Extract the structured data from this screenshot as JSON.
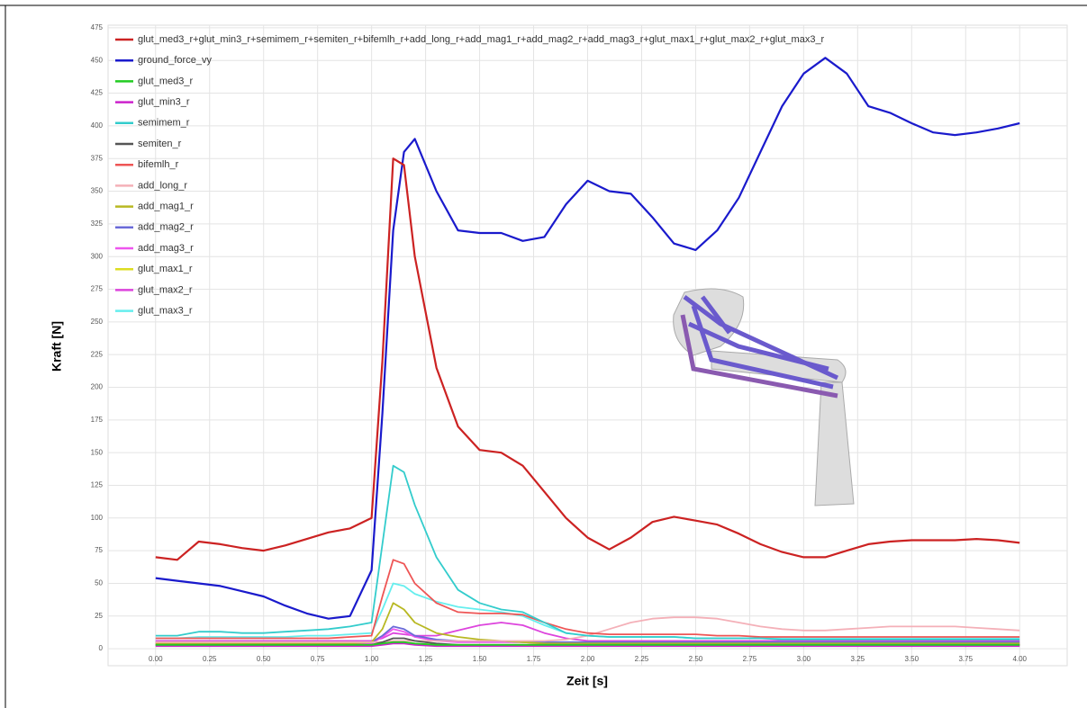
{
  "chart_data": {
    "type": "line",
    "xlabel": "Zeit [s]",
    "ylabel": "Kraft [N]",
    "x": [
      0,
      0.1,
      0.2,
      0.3,
      0.4,
      0.5,
      0.6,
      0.7,
      0.8,
      0.9,
      1.0,
      1.05,
      1.1,
      1.15,
      1.2,
      1.3,
      1.4,
      1.5,
      1.6,
      1.7,
      1.8,
      1.9,
      2.0,
      2.1,
      2.2,
      2.3,
      2.4,
      2.5,
      2.6,
      2.7,
      2.8,
      2.9,
      3.0,
      3.1,
      3.2,
      3.3,
      3.4,
      3.5,
      3.6,
      3.7,
      3.8,
      3.9,
      4.0
    ],
    "series": [
      {
        "name": "glut_med3_r+glut_min3_r+semimem_r+semiten_r+bifemlh_r+add_long_r+add_mag1_r+add_mag2_r+add_mag3_r+glut_max1_r+glut_max2_r+glut_max3_r",
        "color": "#cc2222",
        "values": [
          70,
          68,
          82,
          80,
          77,
          75,
          79,
          84,
          89,
          92,
          100,
          220,
          375,
          370,
          300,
          215,
          170,
          152,
          150,
          140,
          120,
          100,
          85,
          76,
          85,
          97,
          101,
          98,
          95,
          88,
          80,
          74,
          70,
          70,
          75,
          80,
          82,
          83,
          83,
          83,
          84,
          83,
          81
        ]
      },
      {
        "name": "ground_force_vy",
        "color": "#1a1acc",
        "values": [
          54,
          52,
          50,
          48,
          44,
          40,
          33,
          27,
          23,
          25,
          60,
          180,
          320,
          380,
          390,
          350,
          320,
          318,
          318,
          312,
          315,
          340,
          358,
          350,
          348,
          330,
          310,
          305,
          320,
          345,
          380,
          415,
          440,
          452,
          440,
          415,
          410,
          402,
          395,
          393,
          395,
          398,
          402
        ]
      },
      {
        "name": "glut_med3_r",
        "color": "#22cc22",
        "values": [
          3,
          3,
          3,
          3,
          3,
          3,
          3,
          3,
          3,
          3,
          3,
          4,
          5,
          5,
          4,
          3,
          3,
          3,
          3,
          3,
          3,
          3,
          3,
          3,
          3,
          3,
          3,
          3,
          3,
          3,
          3,
          3,
          3,
          3,
          3,
          3,
          3,
          3,
          3,
          3,
          3,
          3,
          3
        ]
      },
      {
        "name": "glut_min3_r",
        "color": "#cc22cc",
        "values": [
          2,
          2,
          2,
          2,
          2,
          2,
          2,
          2,
          2,
          2,
          2,
          3,
          4,
          4,
          3,
          2,
          2,
          2,
          2,
          2,
          2,
          2,
          2,
          2,
          2,
          2,
          2,
          2,
          2,
          2,
          2,
          2,
          2,
          2,
          2,
          2,
          2,
          2,
          2,
          2,
          2,
          2,
          2
        ]
      },
      {
        "name": "semimem_r",
        "color": "#33cccc",
        "values": [
          10,
          10,
          13,
          13,
          12,
          12,
          13,
          14,
          15,
          17,
          20,
          80,
          140,
          135,
          110,
          70,
          45,
          35,
          30,
          28,
          20,
          12,
          10,
          9,
          9,
          9,
          9,
          8,
          8,
          8,
          8,
          7,
          7,
          7,
          7,
          7,
          7,
          7,
          7,
          7,
          7,
          7,
          7
        ]
      },
      {
        "name": "semiten_r",
        "color": "#555555",
        "values": [
          3,
          3,
          3,
          3,
          3,
          3,
          3,
          3,
          3,
          3,
          3,
          5,
          8,
          8,
          6,
          4,
          3,
          3,
          3,
          3,
          3,
          3,
          3,
          3,
          3,
          3,
          3,
          3,
          3,
          3,
          3,
          3,
          3,
          3,
          3,
          3,
          3,
          3,
          3,
          3,
          3,
          3,
          3
        ]
      },
      {
        "name": "bifemlh_r",
        "color": "#ee5555",
        "values": [
          8,
          8,
          8,
          8,
          8,
          8,
          8,
          8,
          8,
          9,
          10,
          40,
          68,
          65,
          50,
          35,
          28,
          27,
          27,
          26,
          20,
          15,
          12,
          11,
          11,
          11,
          11,
          11,
          10,
          10,
          9,
          9,
          9,
          9,
          9,
          9,
          9,
          9,
          9,
          9,
          9,
          9,
          9
        ]
      },
      {
        "name": "add_long_r",
        "color": "#f4b0b8",
        "values": [
          5,
          5,
          5,
          5,
          5,
          5,
          5,
          5,
          5,
          5,
          5,
          5,
          6,
          6,
          6,
          6,
          6,
          6,
          6,
          6,
          6,
          7,
          10,
          15,
          20,
          23,
          24,
          24,
          23,
          20,
          17,
          15,
          14,
          14,
          15,
          16,
          17,
          17,
          17,
          17,
          16,
          15,
          14
        ]
      },
      {
        "name": "add_mag1_r",
        "color": "#b8b822",
        "values": [
          4,
          4,
          4,
          4,
          4,
          4,
          4,
          4,
          4,
          4,
          5,
          15,
          35,
          30,
          20,
          12,
          9,
          7,
          6,
          5,
          4,
          4,
          4,
          4,
          4,
          4,
          4,
          4,
          4,
          4,
          4,
          4,
          4,
          4,
          4,
          4,
          4,
          4,
          4,
          4,
          4,
          4,
          4
        ]
      },
      {
        "name": "add_mag2_r",
        "color": "#6a6ad8",
        "values": [
          5,
          5,
          5,
          5,
          5,
          5,
          5,
          5,
          5,
          5,
          5,
          10,
          17,
          15,
          10,
          7,
          6,
          6,
          6,
          5,
          5,
          5,
          5,
          5,
          5,
          5,
          5,
          5,
          5,
          5,
          5,
          5,
          5,
          5,
          5,
          5,
          5,
          5,
          5,
          5,
          5,
          5,
          5
        ]
      },
      {
        "name": "add_mag3_r",
        "color": "#ee55ee",
        "values": [
          4,
          4,
          4,
          4,
          4,
          4,
          4,
          4,
          4,
          4,
          4,
          9,
          15,
          13,
          9,
          6,
          5,
          5,
          5,
          5,
          4,
          4,
          4,
          4,
          4,
          4,
          4,
          4,
          4,
          4,
          4,
          4,
          4,
          4,
          4,
          4,
          4,
          4,
          4,
          4,
          4,
          4,
          4
        ]
      },
      {
        "name": "glut_max1_r",
        "color": "#dddd22",
        "values": [
          3,
          3,
          3,
          3,
          3,
          3,
          3,
          3,
          3,
          3,
          3,
          4,
          6,
          5,
          4,
          3,
          3,
          3,
          3,
          3,
          3,
          3,
          3,
          3,
          3,
          3,
          3,
          3,
          3,
          3,
          3,
          3,
          3,
          3,
          3,
          3,
          3,
          3,
          3,
          3,
          3,
          3,
          3
        ]
      },
      {
        "name": "glut_max2_r",
        "color": "#dd44dd",
        "values": [
          6,
          6,
          6,
          6,
          6,
          6,
          6,
          6,
          6,
          6,
          6,
          8,
          12,
          11,
          10,
          10,
          14,
          18,
          20,
          18,
          12,
          8,
          6,
          6,
          6,
          6,
          6,
          6,
          6,
          6,
          6,
          6,
          6,
          6,
          6,
          6,
          6,
          6,
          6,
          6,
          6,
          6,
          6
        ]
      },
      {
        "name": "glut_max3_r",
        "color": "#66eeee",
        "values": [
          8,
          8,
          9,
          9,
          9,
          9,
          9,
          10,
          10,
          11,
          12,
          30,
          50,
          48,
          42,
          36,
          32,
          30,
          28,
          25,
          18,
          12,
          10,
          9,
          9,
          9,
          9,
          8,
          8,
          8,
          8,
          8,
          8,
          8,
          8,
          8,
          8,
          8,
          8,
          8,
          8,
          8,
          8
        ]
      }
    ],
    "xlim": [
      -0.22,
      4.22
    ],
    "ylim": [
      -13,
      477
    ],
    "xticks": [
      {
        "value": 0,
        "label": "0.00"
      },
      {
        "value": 0.25,
        "label": "0.25"
      },
      {
        "value": 0.5,
        "label": "0.50"
      },
      {
        "value": 0.75,
        "label": "0.75"
      },
      {
        "value": 1,
        "label": "1.00"
      },
      {
        "value": 1.25,
        "label": "1.25"
      },
      {
        "value": 1.5,
        "label": "1.50"
      },
      {
        "value": 1.75,
        "label": "1.75"
      },
      {
        "value": 2,
        "label": "2.00"
      },
      {
        "value": 2.25,
        "label": "2.25"
      },
      {
        "value": 2.5,
        "label": "2.50"
      },
      {
        "value": 2.75,
        "label": "2.75"
      },
      {
        "value": 3,
        "label": "3.00"
      },
      {
        "value": 3.25,
        "label": "3.25"
      },
      {
        "value": 3.5,
        "label": "3.50"
      },
      {
        "value": 3.75,
        "label": "3.75"
      },
      {
        "value": 4,
        "label": "4.00"
      }
    ],
    "yticks": [
      0,
      25,
      50,
      75,
      100,
      125,
      150,
      175,
      200,
      225,
      250,
      275,
      300,
      325,
      350,
      375,
      400,
      425,
      450,
      475
    ],
    "grid": true,
    "legend": "upper left"
  }
}
